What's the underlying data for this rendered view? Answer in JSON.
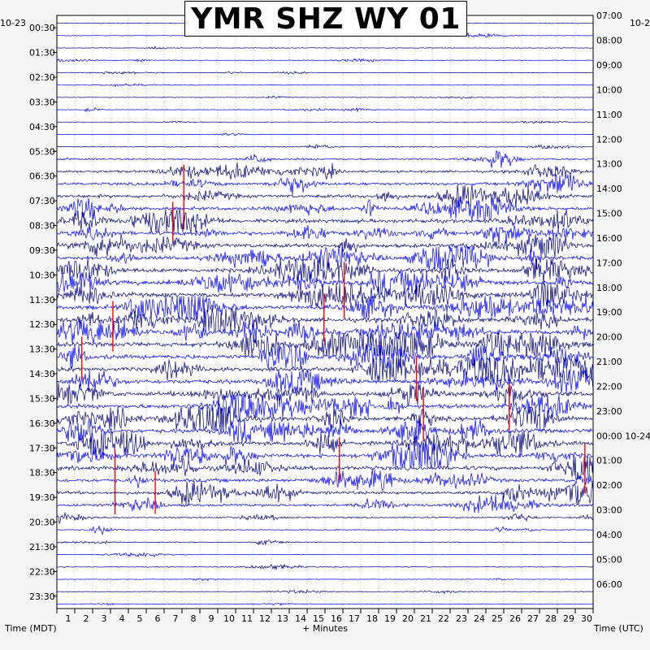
{
  "chart_data": {
    "type": "helicorder",
    "title": "YMR SHZ WY 01",
    "date_left": "10-23",
    "date_right_top": "10-2",
    "date_right_change": "10-24",
    "left_axis_label": "Time (MDT)",
    "bottom_axis_label": "+ Minutes",
    "right_axis_label": "Time (UTC)",
    "x_ticks": [
      1,
      2,
      3,
      4,
      5,
      6,
      7,
      8,
      9,
      10,
      11,
      12,
      13,
      14,
      15,
      16,
      17,
      18,
      19,
      20,
      21,
      22,
      23,
      24,
      25,
      26,
      27,
      28,
      29,
      30
    ],
    "xlim": [
      0,
      30
    ],
    "left_time_labels": [
      "00:30",
      "01:30",
      "02:30",
      "03:30",
      "04:30",
      "05:30",
      "06:30",
      "07:30",
      "08:30",
      "09:30",
      "10:30",
      "11:30",
      "12:30",
      "13:30",
      "14:30",
      "15:30",
      "16:30",
      "17:30",
      "18:30",
      "19:30",
      "20:30",
      "21:30",
      "22:30",
      "23:30"
    ],
    "right_time_labels": [
      "07:00",
      "08:00",
      "09:00",
      "10:00",
      "11:00",
      "12:00",
      "13:00",
      "14:00",
      "15:00",
      "16:00",
      "17:00",
      "18:00",
      "19:00",
      "20:00",
      "21:00",
      "22:00",
      "23:00",
      "00:00 10-24",
      "01:00",
      "02:00",
      "03:00",
      "04:00",
      "05:00",
      "06:00"
    ],
    "trace_colors": [
      "#000080",
      "#0000ff"
    ],
    "clip_color": "#ff0000",
    "grid": true,
    "traces_per_hour": 2,
    "activity_by_trace": [
      0.3,
      0.3,
      0.3,
      0.3,
      0.3,
      0.3,
      0.3,
      0.3,
      0.3,
      0.3,
      0.5,
      0.9,
      1.1,
      1.3,
      1.5,
      1.6,
      1.7,
      1.7,
      1.8,
      1.8,
      1.9,
      1.9,
      2.0,
      2.0,
      2.0,
      2.0,
      2.1,
      2.1,
      2.1,
      2.1,
      2.0,
      2.0,
      2.0,
      2.0,
      2.0,
      1.9,
      1.9,
      1.7,
      1.5,
      1.2,
      0.7,
      0.5,
      0.4,
      0.35,
      0.35,
      0.3,
      0.3,
      0.3
    ]
  }
}
